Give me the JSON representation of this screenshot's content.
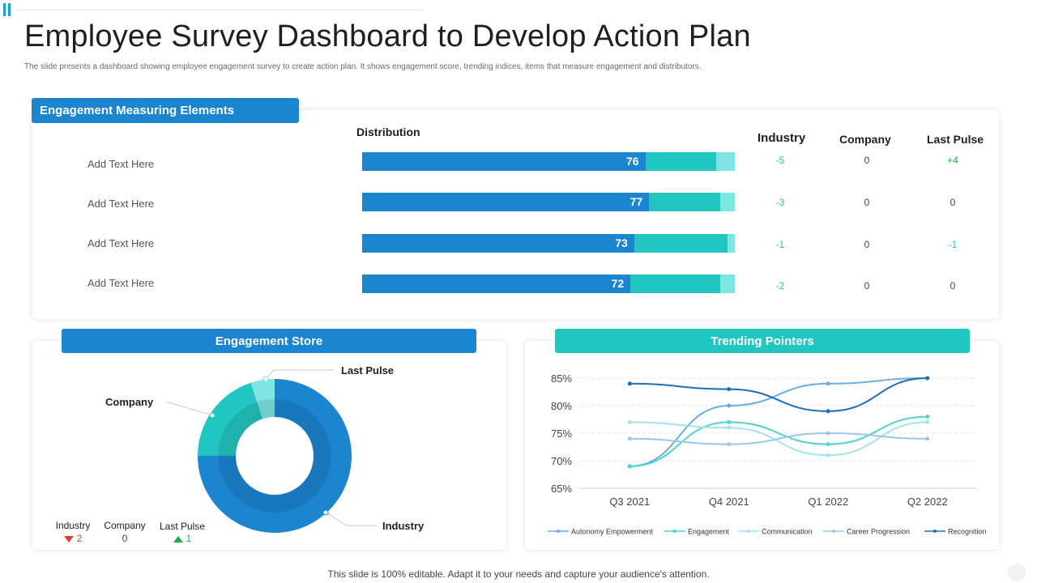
{
  "title": "Employee Survey Dashboard to Develop Action Plan",
  "subtitle": "The slide presents a dashboard showing employee engagement survey to create action plan. It shows engagement score, trending indices, items that measure engagement and distributors.",
  "measuring": {
    "banner": "Engagement Measuring Elements",
    "headers": {
      "distribution": "Distribution",
      "industry": "Industry",
      "company": "Company",
      "last_pulse": "Last Pulse"
    },
    "rows": [
      {
        "label": "Add Text Here",
        "score": "76",
        "industry": "-5",
        "company": "0",
        "last_pulse": "+4"
      },
      {
        "label": "Add Text Here",
        "score": "77",
        "industry": "-3",
        "company": "0",
        "last_pulse": "0"
      },
      {
        "label": "Add Text Here",
        "score": "73",
        "industry": "-1",
        "company": "0",
        "last_pulse": "-1"
      },
      {
        "label": "Add Text Here",
        "score": "72",
        "industry": "-2",
        "company": "0",
        "last_pulse": "0"
      }
    ],
    "segment_fractions": [
      {
        "a": 0.76,
        "b": 0.19,
        "c": 0.05
      },
      {
        "a": 0.77,
        "b": 0.19,
        "c": 0.04
      },
      {
        "a": 0.73,
        "b": 0.25,
        "c": 0.02
      },
      {
        "a": 0.72,
        "b": 0.24,
        "c": 0.04
      }
    ]
  },
  "store": {
    "banner": "Engagement Store",
    "labels": {
      "company": "Company",
      "last_pulse": "Last Pulse",
      "industry": "Industry"
    },
    "summary": [
      {
        "label": "Industry",
        "value": "2",
        "trend": "down"
      },
      {
        "label": "Company",
        "value": "0",
        "trend": "none"
      },
      {
        "label": "Last Pulse",
        "value": "1",
        "trend": "up"
      }
    ]
  },
  "trend": {
    "banner": "Trending Pointers"
  },
  "chart_data": [
    {
      "type": "pie",
      "title": "Engagement Store",
      "categories": [
        "Industry",
        "Company",
        "Last Pulse"
      ],
      "values": [
        75,
        20,
        5
      ],
      "colors": [
        "#1c85d0",
        "#22c6c0",
        "#7fe5e3"
      ]
    },
    {
      "type": "line",
      "title": "Trending Pointers",
      "categories": [
        "Q3 2021",
        "Q4 2021",
        "Q1 2022",
        "Q2 2022"
      ],
      "ylim": [
        65,
        85
      ],
      "yticks": [
        "65%",
        "70%",
        "75%",
        "80%",
        "85%"
      ],
      "series": [
        {
          "name": "Autonomy Empowerment",
          "values": [
            69,
            80,
            84,
            85
          ],
          "color": "#6aaee0"
        },
        {
          "name": "Engagement",
          "values": [
            69,
            77,
            73,
            78
          ],
          "color": "#4ed3cd"
        },
        {
          "name": "Communication",
          "values": [
            77,
            76,
            71,
            77
          ],
          "color": "#9fe6ea"
        },
        {
          "name": "Career Progression",
          "values": [
            74,
            73,
            75,
            74
          ],
          "color": "#9cc6e6"
        },
        {
          "name": "Recognition",
          "values": [
            84,
            83,
            79,
            85
          ],
          "color": "#1a6fb8"
        }
      ]
    }
  ],
  "footer": "This slide is 100% editable. Adapt it to your needs and capture your audience's attention."
}
